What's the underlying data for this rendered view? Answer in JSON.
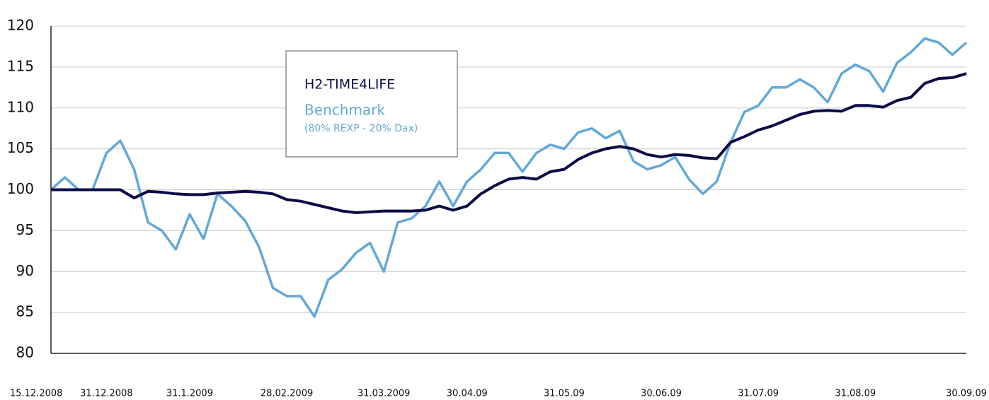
{
  "chart_data": {
    "type": "line",
    "categories": [
      "15.12.2008",
      null,
      null,
      null,
      "31.12.2008",
      null,
      null,
      null,
      null,
      null,
      "31.1.2009",
      null,
      null,
      null,
      null,
      null,
      null,
      "28.02.2009",
      null,
      null,
      null,
      null,
      null,
      null,
      "31.03.2009",
      null,
      null,
      null,
      null,
      null,
      "30.04.09",
      null,
      null,
      null,
      null,
      null,
      null,
      "31.05.09",
      null,
      null,
      null,
      null,
      null,
      null,
      "30.06.09",
      null,
      null,
      null,
      null,
      null,
      null,
      "31.07.09",
      null,
      null,
      null,
      null,
      null,
      null,
      "31.08.09",
      null,
      null,
      null,
      null,
      null,
      null,
      null,
      "30.09.09"
    ],
    "series": [
      {
        "name": "H2-TIME4LIFE",
        "color": "#0b0b48",
        "values": [
          100,
          100,
          100,
          100,
          100,
          100,
          99,
          99.8,
          99.7,
          99.5,
          99.4,
          99.4,
          99.6,
          99.7,
          99.8,
          99.7,
          99.5,
          98.8,
          98.6,
          98.2,
          97.8,
          97.4,
          97.2,
          97.3,
          97.4,
          97.4,
          97.4,
          97.5,
          98,
          97.5,
          98,
          99.5,
          100.5,
          101.3,
          101.5,
          101.3,
          102.2,
          102.5,
          103.7,
          104.5,
          105,
          105.3,
          105,
          104.3,
          104,
          104.3,
          104.2,
          103.9,
          103.8,
          105.8,
          106.5,
          107.3,
          107.8,
          108.5,
          109.2,
          109.6,
          109.7,
          109.6,
          110.3,
          110.3,
          110.1,
          110.9,
          111.3,
          113,
          113.6,
          113.7,
          114.2
        ]
      },
      {
        "name": "Benchmark",
        "color": "#62a8d8",
        "values": [
          100,
          101.5,
          100,
          100,
          104.5,
          106,
          102.5,
          96,
          95,
          92.7,
          97,
          94,
          99.5,
          98,
          96.2,
          93,
          88,
          87,
          87,
          84.5,
          89,
          90.3,
          92.3,
          93.5,
          90,
          96,
          96.5,
          98,
          101,
          98,
          101,
          102.5,
          104.5,
          104.5,
          102.2,
          104.5,
          105.5,
          105,
          107,
          107.5,
          106.3,
          107.2,
          103.5,
          102.5,
          103,
          104,
          101.3,
          99.5,
          101,
          105.8,
          109.5,
          110.3,
          112.5,
          112.5,
          113.5,
          112.5,
          110.7,
          114.2,
          115.3,
          114.5,
          112,
          115.5,
          116.8,
          118.5,
          118,
          116.5,
          118
        ]
      }
    ],
    "benchmark_note": "(80% REXP - 20% Dax)",
    "ylim": [
      80,
      120
    ],
    "yticks": [
      80,
      85,
      90,
      95,
      100,
      105,
      110,
      115,
      120
    ],
    "grid": true
  }
}
